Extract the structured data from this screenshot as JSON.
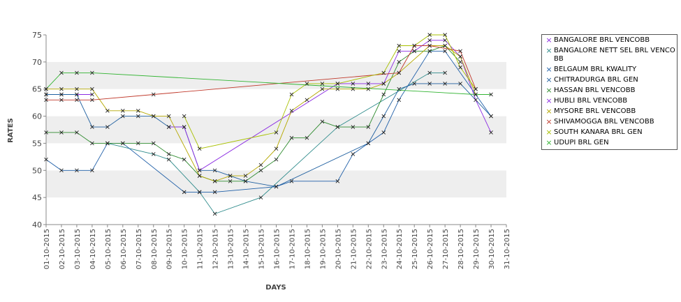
{
  "chart_data": {
    "type": "line",
    "xlabel": "DAYS",
    "ylabel": "RATES",
    "ylim": [
      40,
      75
    ],
    "yticks": [
      40,
      45,
      50,
      55,
      60,
      65,
      70,
      75
    ],
    "grid": "alternating horizontal bands",
    "legend_position": "right",
    "categories": [
      "01-10-2015",
      "02-10-2015",
      "03-10-2015",
      "04-10-2015",
      "05-10-2015",
      "06-10-2015",
      "07-10-2015",
      "08-10-2015",
      "09-10-2015",
      "10-10-2015",
      "11-10-2015",
      "12-10-2015",
      "13-10-2015",
      "14-10-2015",
      "15-10-2015",
      "16-10-2015",
      "17-10-2015",
      "18-10-2015",
      "19-10-2015",
      "20-10-2015",
      "21-10-2015",
      "22-10-2015",
      "23-10-2015",
      "24-10-2015",
      "25-10-2015",
      "26-10-2015",
      "27-10-2015",
      "28-10-2015",
      "29-10-2015",
      "30-10-2015",
      "31-10-2015"
    ],
    "series": [
      {
        "name": "BANGALORE BRL VENCOBB",
        "color": "#8a2be2",
        "values": [
          64,
          64,
          64,
          64,
          null,
          null,
          null,
          null,
          null,
          null,
          null,
          null,
          null,
          null,
          null,
          null,
          null,
          null,
          null,
          null,
          null,
          null,
          null,
          null,
          null,
          null,
          null,
          null,
          null,
          null,
          null
        ]
      },
      {
        "name": "BANGALORE NETT SEL BRL VENCOBB",
        "color": "#2e8b8b",
        "values": [
          null,
          null,
          null,
          null,
          55,
          null,
          null,
          53,
          52,
          null,
          46,
          42,
          null,
          null,
          45,
          null,
          null,
          null,
          null,
          58,
          null,
          null,
          null,
          null,
          null,
          68,
          68,
          null,
          null,
          null,
          null
        ]
      },
      {
        "name": "BELGAUM BRL KWALITY",
        "color": "#1f5fa8",
        "values": [
          52,
          50,
          50,
          50,
          55,
          55,
          null,
          null,
          null,
          46,
          46,
          46,
          null,
          null,
          null,
          47,
          48,
          null,
          null,
          48,
          53,
          55,
          57,
          63,
          null,
          72,
          72,
          null,
          null,
          60,
          null
        ]
      },
      {
        "name": "CHITRADURGA BRL GEN",
        "color": "#2060a0",
        "values": [
          64,
          64,
          64,
          58,
          58,
          60,
          60,
          60,
          58,
          58,
          50,
          50,
          49,
          48,
          null,
          47,
          null,
          null,
          null,
          null,
          null,
          55,
          60,
          65,
          66,
          66,
          66,
          66,
          null,
          60,
          null
        ]
      },
      {
        "name": "HASSAN BRL VENCOBB",
        "color": "#2e8b2e",
        "values": [
          57,
          57,
          57,
          55,
          55,
          55,
          55,
          55,
          53,
          52,
          49,
          48,
          48,
          48,
          50,
          52,
          56,
          56,
          59,
          58,
          58,
          58,
          64,
          70,
          72,
          72,
          73,
          70,
          null,
          null,
          null
        ]
      },
      {
        "name": "HUBLI BRL VENCOBB",
        "color": "#8b2be2",
        "values": [
          null,
          null,
          null,
          null,
          null,
          null,
          null,
          null,
          58,
          58,
          50,
          null,
          null,
          null,
          null,
          null,
          null,
          null,
          null,
          66,
          66,
          66,
          66,
          72,
          72,
          74,
          74,
          71,
          63,
          57,
          null
        ]
      },
      {
        "name": "MYSORE BRL VENCOBB",
        "color": "#b5a800",
        "values": [
          65,
          65,
          65,
          65,
          61,
          61,
          61,
          60,
          60,
          null,
          49,
          48,
          49,
          49,
          51,
          54,
          61,
          63,
          65,
          65,
          65,
          65,
          66,
          68,
          null,
          73,
          73,
          71,
          64,
          null,
          null
        ]
      },
      {
        "name": "SHIVAMOGGA BRL VENCOBB",
        "color": "#c0392b",
        "values": [
          63,
          63,
          63,
          63,
          null,
          null,
          null,
          64,
          null,
          null,
          null,
          null,
          null,
          null,
          null,
          null,
          null,
          null,
          null,
          null,
          null,
          null,
          null,
          68,
          73,
          73,
          null,
          72,
          65,
          null,
          null
        ]
      },
      {
        "name": "SOUTH KANARA BRL GEN",
        "color": "#a8c000",
        "values": [
          null,
          null,
          null,
          null,
          null,
          null,
          null,
          null,
          null,
          60,
          54,
          null,
          null,
          null,
          null,
          57,
          64,
          66,
          66,
          66,
          null,
          null,
          68,
          73,
          73,
          75,
          75,
          69,
          65,
          null,
          null
        ]
      },
      {
        "name": "UDUPI BRL GEN",
        "color": "#32b432",
        "values": [
          65,
          68,
          68,
          68,
          null,
          null,
          null,
          null,
          null,
          null,
          null,
          null,
          null,
          null,
          null,
          null,
          null,
          null,
          null,
          null,
          null,
          null,
          null,
          null,
          null,
          null,
          null,
          null,
          64,
          64,
          null
        ]
      }
    ]
  }
}
